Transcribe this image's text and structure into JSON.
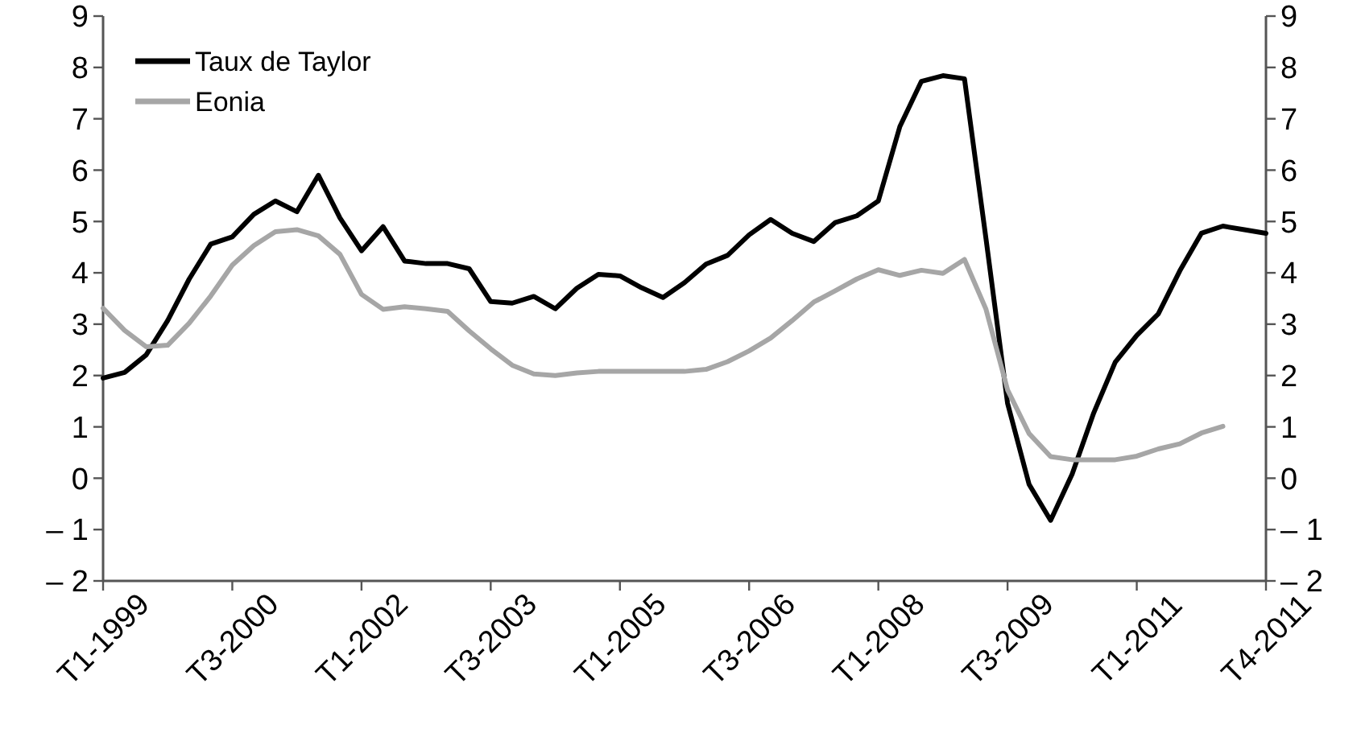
{
  "chart_data": {
    "type": "line",
    "legend": "top left",
    "grid": false,
    "marker": "none",
    "line_style": "solid",
    "categories": [
      "T1-1999",
      null,
      null,
      null,
      null,
      null,
      "T3-2000",
      null,
      null,
      null,
      null,
      null,
      "T1-2002",
      null,
      null,
      null,
      null,
      null,
      "T3-2003",
      null,
      null,
      null,
      null,
      null,
      "T1-2005",
      null,
      null,
      null,
      null,
      null,
      "T3-2006",
      null,
      null,
      null,
      null,
      null,
      "T1-2008",
      null,
      null,
      null,
      null,
      null,
      "T3-2009",
      null,
      null,
      null,
      null,
      null,
      "T1-2011",
      null,
      null,
      null,
      null,
      null,
      "T4-2011"
    ],
    "ylim": [
      -2,
      9
    ],
    "yticks": [
      {
        "value": -2,
        "label": "– 2"
      },
      {
        "value": -1,
        "label": "– 1"
      },
      0,
      1,
      2,
      3,
      4,
      5,
      6,
      7,
      8,
      9
    ],
    "y2lim": [
      -2,
      9
    ],
    "y2ticks": [
      {
        "value": -2,
        "label": "– 2"
      },
      {
        "value": -1,
        "label": "– 1"
      },
      0,
      1,
      2,
      3,
      4,
      5,
      6,
      7,
      8,
      9
    ],
    "series": [
      {
        "name": "Taux de Taylor",
        "color": "#000000",
        "values": [
          1.95,
          2.06,
          2.4,
          3.07,
          3.88,
          4.56,
          4.7,
          5.14,
          5.4,
          5.19,
          5.9,
          5.07,
          4.43,
          4.9,
          4.23,
          4.18,
          4.18,
          4.08,
          3.44,
          3.41,
          3.54,
          3.3,
          3.7,
          3.97,
          3.94,
          3.71,
          3.52,
          3.81,
          4.17,
          4.34,
          4.74,
          5.04,
          4.77,
          4.61,
          4.98,
          5.11,
          5.4,
          6.85,
          7.73,
          7.84,
          7.78,
          4.66,
          1.46,
          -0.12,
          -0.82,
          0.08,
          1.27,
          2.26,
          2.78,
          3.2,
          4.04,
          4.77,
          4.91,
          4.84,
          4.77
        ]
      },
      {
        "name": "Eonia",
        "color": "#a6a6a6",
        "values": [
          3.31,
          2.88,
          2.56,
          2.59,
          3.02,
          3.55,
          4.15,
          4.53,
          4.8,
          4.84,
          4.72,
          4.36,
          3.58,
          3.29,
          3.34,
          3.3,
          3.25,
          2.87,
          2.52,
          2.2,
          2.03,
          2,
          2.05,
          2.08,
          2.08,
          2.08,
          2.08,
          2.08,
          2.12,
          2.27,
          2.48,
          2.73,
          3.07,
          3.43,
          3.65,
          3.88,
          4.06,
          3.95,
          4.05,
          3.99,
          4.26,
          3.29,
          1.72,
          0.87,
          0.42,
          0.36,
          0.36,
          0.36,
          0.43,
          0.57,
          0.67,
          0.88,
          1.01,
          null,
          null
        ]
      }
    ]
  }
}
